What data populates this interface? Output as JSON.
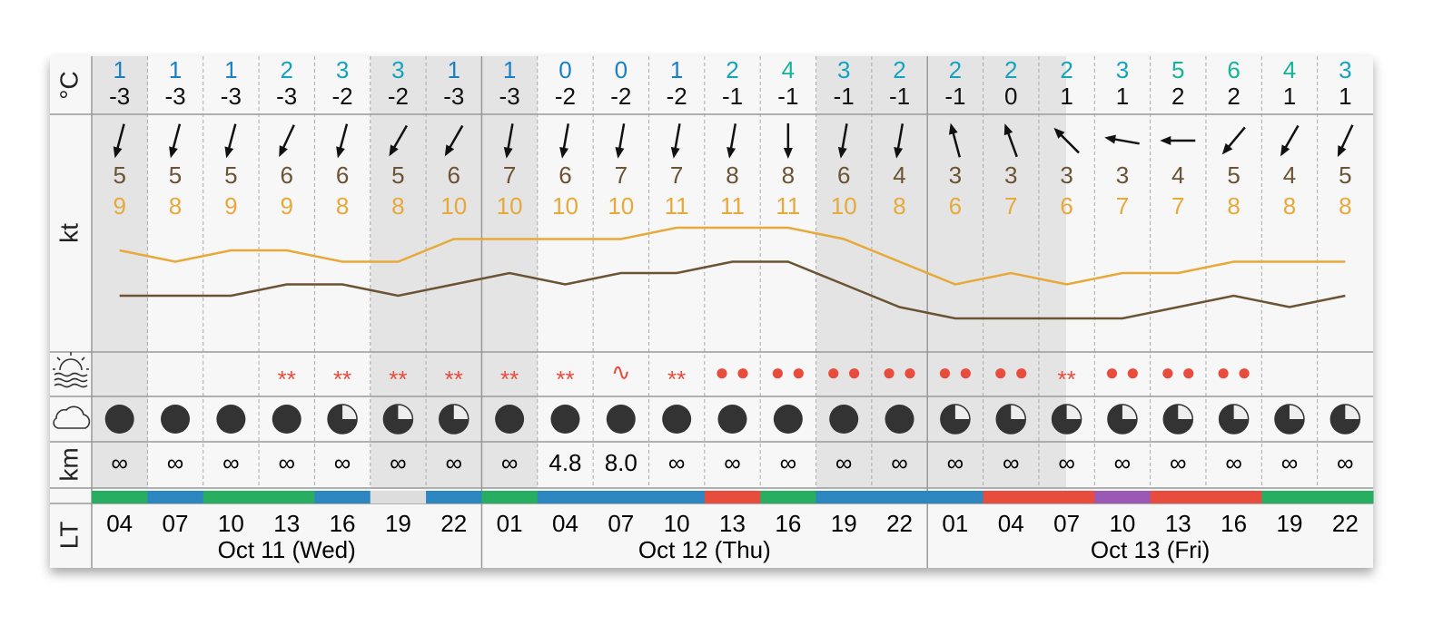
{
  "units": {
    "temperature": "°C",
    "wind": "kt",
    "visibility": "km",
    "time": "LT"
  },
  "temp_upper": [
    1,
    1,
    1,
    2,
    3,
    3,
    1,
    1,
    0,
    0,
    1,
    2,
    4,
    3,
    2,
    2,
    2,
    2,
    3,
    5,
    6,
    4,
    3
  ],
  "temp_lower": [
    -3,
    -3,
    -3,
    -3,
    -2,
    -2,
    -3,
    -3,
    -2,
    -2,
    -2,
    -1,
    -1,
    -1,
    -1,
    -1,
    0,
    1,
    1,
    2,
    2,
    1,
    1
  ],
  "wind_direction": [
    15,
    15,
    15,
    25,
    15,
    30,
    30,
    10,
    10,
    10,
    10,
    10,
    0,
    10,
    10,
    165,
    160,
    135,
    100,
    90,
    40,
    30,
    25
  ],
  "wind_speed": [
    5,
    5,
    5,
    6,
    6,
    5,
    6,
    7,
    6,
    7,
    7,
    8,
    8,
    6,
    4,
    3,
    3,
    3,
    3,
    4,
    5,
    4,
    5
  ],
  "wind_gust": [
    9,
    8,
    9,
    9,
    8,
    8,
    10,
    10,
    10,
    10,
    11,
    11,
    11,
    10,
    8,
    6,
    7,
    6,
    7,
    7,
    8,
    8,
    8
  ],
  "precipitation": [
    null,
    null,
    null,
    "**",
    "**",
    "**",
    "**",
    "**",
    "**",
    "∿",
    "**",
    "● ●",
    "● ●",
    "● ●",
    "● ●",
    "● ●",
    "● ●",
    "**",
    "● ●",
    "● ●",
    "● ●",
    null,
    null
  ],
  "cloud_cover": [
    100,
    100,
    100,
    100,
    75,
    75,
    75,
    100,
    100,
    100,
    100,
    100,
    100,
    100,
    100,
    75,
    75,
    75,
    75,
    75,
    75,
    75,
    75
  ],
  "visibility": [
    "∞",
    "∞",
    "∞",
    "∞",
    "∞",
    "∞",
    "∞",
    "∞",
    "4.8",
    "8.0",
    "∞",
    "∞",
    "∞",
    "∞",
    "∞",
    "∞",
    "∞",
    "∞",
    "∞",
    "∞",
    "∞",
    "∞",
    "∞"
  ],
  "band_colors": [
    "#27ae60",
    "#2e86c1",
    "#27ae60",
    "#27ae60",
    "#2e86c1",
    "#dddddd",
    "#2e86c1",
    "#27ae60",
    "#2e86c1",
    "#2e86c1",
    "#2e86c1",
    "#e74c3c",
    "#27ae60",
    "#2e86c1",
    "#2e86c1",
    "#2e86c1",
    "#e74c3c",
    "#e74c3c",
    "#9b59b6",
    "#e74c3c",
    "#e74c3c",
    "#27ae60",
    "#27ae60"
  ],
  "hours": [
    "04",
    "07",
    "10",
    "13",
    "16",
    "19",
    "22",
    "01",
    "04",
    "07",
    "10",
    "13",
    "16",
    "19",
    "22",
    "01",
    "04",
    "07",
    "10",
    "13",
    "16",
    "19",
    "22"
  ],
  "dates": [
    "Oct 11 (Wed)",
    "Oct 12 (Thu)",
    "Oct 13 (Fri)"
  ]
}
